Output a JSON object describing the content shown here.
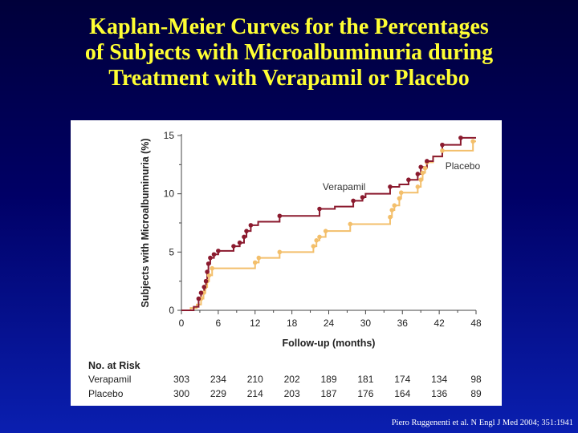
{
  "slide": {
    "title_lines": [
      "Kaplan-Meier Curves for the Percentages",
      "of Subjects with Microalbuminuria during",
      "Treatment with Verapamil or Placebo"
    ],
    "citation": "Piero Ruggenenti et al. N Engl J Med 2004; 351:1941"
  },
  "colors": {
    "verapamil": "#8b1a2e",
    "placebo": "#f3bf6b",
    "axis": "#444444",
    "text": "#222222"
  },
  "chart_data": {
    "type": "line",
    "subtype": "kaplan-meier step curve",
    "xlabel": "Follow-up (months)",
    "ylabel": "Subjects with Microalbuminuria (%)",
    "xlim": [
      0,
      48
    ],
    "ylim": [
      0,
      15
    ],
    "xticks": [
      "0",
      "6",
      "12",
      "18",
      "24",
      "30",
      "36",
      "42",
      "48"
    ],
    "yticks": [
      "0",
      "5",
      "10",
      "15"
    ],
    "grid": false,
    "series": [
      {
        "name": "Verapamil",
        "color_key": "verapamil",
        "steps": [
          [
            0,
            0
          ],
          [
            2,
            0.3
          ],
          [
            2.8,
            1.0
          ],
          [
            3.2,
            1.5
          ],
          [
            3.7,
            2.0
          ],
          [
            4.0,
            2.5
          ],
          [
            4.2,
            3.3
          ],
          [
            4.4,
            4.0
          ],
          [
            4.7,
            4.5
          ],
          [
            5.3,
            4.8
          ],
          [
            6.0,
            5.1
          ],
          [
            8.5,
            5.5
          ],
          [
            9.5,
            5.8
          ],
          [
            10.2,
            6.3
          ],
          [
            10.6,
            6.8
          ],
          [
            11.3,
            7.3
          ],
          [
            12.5,
            7.6
          ],
          [
            16.0,
            8.1
          ],
          [
            22.5,
            8.7
          ],
          [
            25.0,
            8.9
          ],
          [
            28.0,
            9.4
          ],
          [
            29.5,
            9.7
          ],
          [
            30.0,
            10.0
          ],
          [
            34.0,
            10.6
          ],
          [
            35.5,
            10.8
          ],
          [
            37.0,
            11.2
          ],
          [
            38.5,
            11.7
          ],
          [
            39.0,
            12.3
          ],
          [
            40.0,
            12.8
          ],
          [
            41.0,
            13.2
          ],
          [
            42.5,
            13.6
          ],
          [
            42.5,
            14.2
          ],
          [
            45.5,
            14.8
          ],
          [
            48.0,
            14.8
          ]
        ],
        "censor_marks": [
          [
            2.8,
            1.0
          ],
          [
            3.2,
            1.5
          ],
          [
            3.7,
            2.0
          ],
          [
            4.0,
            2.5
          ],
          [
            4.2,
            3.3
          ],
          [
            4.4,
            4.0
          ],
          [
            4.7,
            4.5
          ],
          [
            5.3,
            4.8
          ],
          [
            6.0,
            5.1
          ],
          [
            8.5,
            5.5
          ],
          [
            9.5,
            5.8
          ],
          [
            10.2,
            6.3
          ],
          [
            10.6,
            6.8
          ],
          [
            11.3,
            7.3
          ],
          [
            16.0,
            8.1
          ],
          [
            22.5,
            8.7
          ],
          [
            28.0,
            9.4
          ],
          [
            29.5,
            9.7
          ],
          [
            34.0,
            10.6
          ],
          [
            37.0,
            11.2
          ],
          [
            38.5,
            11.7
          ],
          [
            39.0,
            12.3
          ],
          [
            40.0,
            12.8
          ],
          [
            42.5,
            14.2
          ],
          [
            45.5,
            14.8
          ]
        ]
      },
      {
        "name": "Placebo",
        "color_key": "placebo",
        "steps": [
          [
            0,
            0
          ],
          [
            1.5,
            0.2
          ],
          [
            2.5,
            0.5
          ],
          [
            3.2,
            1.0
          ],
          [
            3.6,
            1.5
          ],
          [
            3.9,
            2.0
          ],
          [
            4.2,
            2.5
          ],
          [
            4.5,
            3.0
          ],
          [
            5.0,
            3.6
          ],
          [
            12.0,
            4.1
          ],
          [
            12.6,
            4.5
          ],
          [
            16.0,
            5.0
          ],
          [
            21.5,
            5.5
          ],
          [
            22.0,
            6.0
          ],
          [
            22.5,
            6.3
          ],
          [
            23.5,
            6.8
          ],
          [
            27.5,
            7.4
          ],
          [
            34.0,
            8.0
          ],
          [
            34.3,
            8.6
          ],
          [
            34.7,
            9.0
          ],
          [
            35.5,
            9.6
          ],
          [
            35.8,
            10.1
          ],
          [
            38.5,
            10.6
          ],
          [
            39.0,
            11.2
          ],
          [
            39.3,
            11.8
          ],
          [
            39.7,
            12.2
          ],
          [
            40.0,
            12.7
          ],
          [
            41.0,
            13.2
          ],
          [
            42.5,
            13.7
          ],
          [
            47.5,
            14.5
          ],
          [
            48.0,
            14.5
          ]
        ],
        "censor_marks": [
          [
            3.2,
            1.0
          ],
          [
            3.6,
            1.5
          ],
          [
            3.9,
            2.0
          ],
          [
            4.2,
            2.5
          ],
          [
            4.5,
            3.0
          ],
          [
            5.0,
            3.6
          ],
          [
            12.0,
            4.1
          ],
          [
            12.6,
            4.5
          ],
          [
            16.0,
            5.0
          ],
          [
            21.5,
            5.5
          ],
          [
            22.0,
            6.0
          ],
          [
            22.5,
            6.3
          ],
          [
            23.5,
            6.8
          ],
          [
            27.5,
            7.4
          ],
          [
            34.0,
            8.0
          ],
          [
            34.3,
            8.6
          ],
          [
            34.7,
            9.0
          ],
          [
            35.5,
            9.6
          ],
          [
            35.8,
            10.1
          ],
          [
            38.5,
            10.6
          ],
          [
            39.0,
            11.2
          ],
          [
            39.3,
            11.8
          ],
          [
            39.7,
            12.2
          ],
          [
            40.0,
            12.7
          ],
          [
            42.5,
            13.7
          ],
          [
            47.5,
            14.5
          ]
        ]
      }
    ],
    "annotations": [
      "Verapamil",
      "Placebo"
    ],
    "at_risk": {
      "title": "No. at Risk",
      "months": [
        0,
        6,
        12,
        18,
        24,
        30,
        36,
        42,
        48
      ],
      "rows": [
        {
          "label": "Verapamil",
          "values": [
            "303",
            "234",
            "210",
            "202",
            "189",
            "181",
            "174",
            "134",
            "98"
          ]
        },
        {
          "label": "Placebo",
          "values": [
            "300",
            "229",
            "214",
            "203",
            "187",
            "176",
            "164",
            "136",
            "89"
          ]
        }
      ]
    }
  }
}
